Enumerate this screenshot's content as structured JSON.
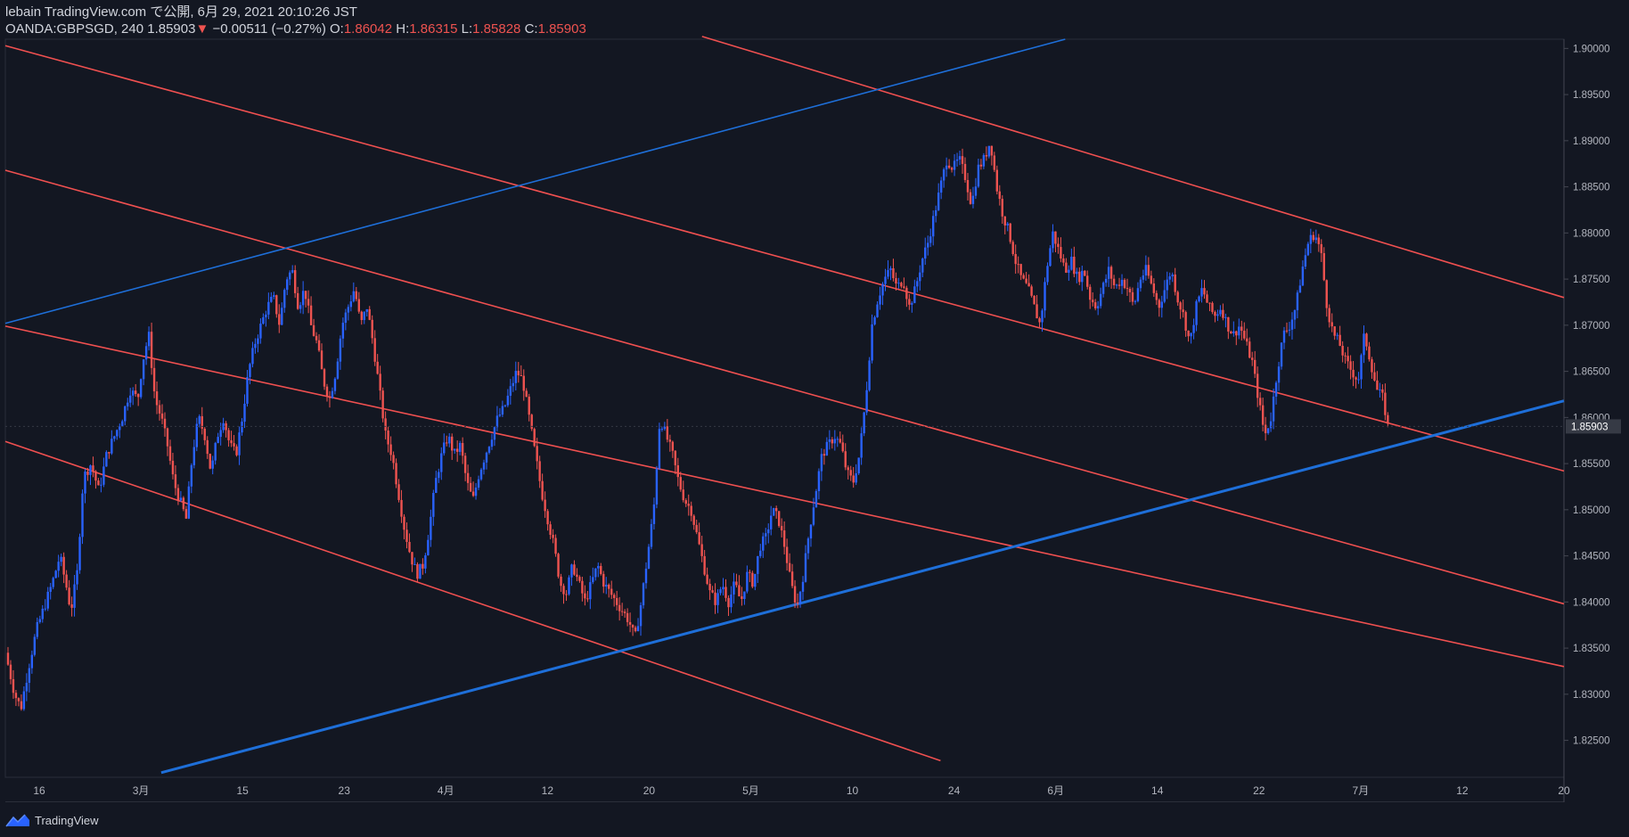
{
  "header": {
    "line1": "lebain TradingView.com で公開, 6月 29, 2021 20:10:26 JST",
    "symbol": "OANDA:GBPSGD, 240",
    "last": "1.85903",
    "arrow": "▼",
    "change": "−0.00511 (−0.27%)",
    "o_label": "O:",
    "o_val": "1.86042",
    "h_label": "H:",
    "h_val": "1.86315",
    "l_label": "L:",
    "l_val": "1.85828",
    "c_label": "C:",
    "c_val": "1.85903"
  },
  "brand": {
    "label": "TradingView"
  },
  "colors": {
    "bg": "#131722",
    "up": "#2962ff",
    "down": "#ef5350",
    "red_line": "#f05050",
    "blue_line": "#1e6fd9",
    "axis_text": "#b2b5be",
    "price_tag": "#363a45"
  },
  "chart_data": {
    "type": "candlestick",
    "instrument": "OANDA:GBPSGD",
    "interval": "240",
    "price_axis": {
      "ylim": [
        1.821,
        1.901
      ],
      "ticks": [
        "1.90000",
        "1.89500",
        "1.89000",
        "1.88500",
        "1.88000",
        "1.87500",
        "1.87000",
        "1.86500",
        "1.86000",
        "1.85500",
        "1.85000",
        "1.84500",
        "1.84000",
        "1.83500",
        "1.83000",
        "1.82500"
      ],
      "last_price_label": "1.85903"
    },
    "time_axis": {
      "ticks": [
        "16",
        "3月",
        "15",
        "23",
        "4月",
        "12",
        "20",
        "5月",
        "10",
        "24",
        "6月",
        "14",
        "22",
        "7月",
        "12",
        "20"
      ]
    },
    "close_path": [
      [
        0.0,
        1.8345
      ],
      [
        0.006,
        1.83
      ],
      [
        0.01,
        1.8285
      ],
      [
        0.015,
        1.833
      ],
      [
        0.02,
        1.837
      ],
      [
        0.025,
        1.8395
      ],
      [
        0.03,
        1.842
      ],
      [
        0.035,
        1.845
      ],
      [
        0.04,
        1.841
      ],
      [
        0.042,
        1.839
      ],
      [
        0.046,
        1.843
      ],
      [
        0.05,
        1.8535
      ],
      [
        0.055,
        1.855
      ],
      [
        0.06,
        1.852
      ],
      [
        0.065,
        1.856
      ],
      [
        0.07,
        1.858
      ],
      [
        0.075,
        1.86
      ],
      [
        0.08,
        1.863
      ],
      [
        0.085,
        1.862
      ],
      [
        0.088,
        1.866
      ],
      [
        0.092,
        1.869
      ],
      [
        0.096,
        1.862
      ],
      [
        0.1,
        1.86
      ],
      [
        0.104,
        1.857
      ],
      [
        0.108,
        1.853
      ],
      [
        0.112,
        1.851
      ],
      [
        0.116,
        1.849
      ],
      [
        0.12,
        1.856
      ],
      [
        0.124,
        1.86
      ],
      [
        0.128,
        1.858
      ],
      [
        0.132,
        1.854
      ],
      [
        0.136,
        1.858
      ],
      [
        0.14,
        1.86
      ],
      [
        0.144,
        1.857
      ],
      [
        0.148,
        1.856
      ],
      [
        0.152,
        1.86
      ],
      [
        0.156,
        1.865
      ],
      [
        0.16,
        1.868
      ],
      [
        0.164,
        1.87
      ],
      [
        0.168,
        1.872
      ],
      [
        0.172,
        1.873
      ],
      [
        0.176,
        1.87
      ],
      [
        0.18,
        1.875
      ],
      [
        0.184,
        1.876
      ],
      [
        0.188,
        1.872
      ],
      [
        0.192,
        1.874
      ],
      [
        0.196,
        1.87
      ],
      [
        0.2,
        1.868
      ],
      [
        0.204,
        1.864
      ],
      [
        0.208,
        1.862
      ],
      [
        0.212,
        1.865
      ],
      [
        0.216,
        1.87
      ],
      [
        0.22,
        1.872
      ],
      [
        0.224,
        1.874
      ],
      [
        0.228,
        1.87
      ],
      [
        0.232,
        1.872
      ],
      [
        0.236,
        1.868
      ],
      [
        0.24,
        1.863
      ],
      [
        0.244,
        1.858
      ],
      [
        0.248,
        1.856
      ],
      [
        0.252,
        1.852
      ],
      [
        0.256,
        1.848
      ],
      [
        0.26,
        1.845
      ],
      [
        0.264,
        1.843
      ],
      [
        0.268,
        1.844
      ],
      [
        0.272,
        1.848
      ],
      [
        0.276,
        1.853
      ],
      [
        0.28,
        1.856
      ],
      [
        0.284,
        1.858
      ],
      [
        0.288,
        1.856
      ],
      [
        0.292,
        1.857
      ],
      [
        0.296,
        1.853
      ],
      [
        0.3,
        1.851
      ],
      [
        0.304,
        1.854
      ],
      [
        0.308,
        1.856
      ],
      [
        0.312,
        1.858
      ],
      [
        0.316,
        1.86
      ],
      [
        0.32,
        1.861
      ],
      [
        0.324,
        1.863
      ],
      [
        0.328,
        1.865
      ],
      [
        0.332,
        1.864
      ],
      [
        0.336,
        1.86
      ],
      [
        0.34,
        1.856
      ],
      [
        0.344,
        1.852
      ],
      [
        0.348,
        1.849
      ],
      [
        0.352,
        1.846
      ],
      [
        0.356,
        1.842
      ],
      [
        0.36,
        1.841
      ],
      [
        0.364,
        1.844
      ],
      [
        0.368,
        1.842
      ],
      [
        0.372,
        1.84
      ],
      [
        0.376,
        1.842
      ],
      [
        0.38,
        1.844
      ],
      [
        0.384,
        1.842
      ],
      [
        0.388,
        1.841
      ],
      [
        0.392,
        1.84
      ],
      [
        0.396,
        1.839
      ],
      [
        0.4,
        1.838
      ],
      [
        0.404,
        1.836
      ],
      [
        0.408,
        1.84
      ],
      [
        0.412,
        1.845
      ],
      [
        0.416,
        1.85
      ],
      [
        0.42,
        1.86
      ],
      [
        0.424,
        1.858
      ],
      [
        0.428,
        1.856
      ],
      [
        0.432,
        1.853
      ],
      [
        0.436,
        1.851
      ],
      [
        0.44,
        1.85
      ],
      [
        0.444,
        1.847
      ],
      [
        0.448,
        1.844
      ],
      [
        0.452,
        1.841
      ],
      [
        0.456,
        1.84
      ],
      [
        0.46,
        1.842
      ],
      [
        0.464,
        1.84
      ],
      [
        0.468,
        1.842
      ],
      [
        0.472,
        1.84
      ],
      [
        0.476,
        1.843
      ],
      [
        0.48,
        1.842
      ],
      [
        0.484,
        1.846
      ],
      [
        0.488,
        1.847
      ],
      [
        0.492,
        1.85
      ],
      [
        0.496,
        1.849
      ],
      [
        0.5,
        1.846
      ],
      [
        0.504,
        1.842
      ],
      [
        0.508,
        1.8395
      ],
      [
        0.512,
        1.843
      ],
      [
        0.516,
        1.848
      ],
      [
        0.52,
        1.852
      ],
      [
        0.524,
        1.856
      ],
      [
        0.528,
        1.857
      ],
      [
        0.532,
        1.858
      ],
      [
        0.536,
        1.857
      ],
      [
        0.54,
        1.854
      ],
      [
        0.544,
        1.853
      ],
      [
        0.548,
        1.856
      ],
      [
        0.552,
        1.862
      ],
      [
        0.556,
        1.87
      ],
      [
        0.56,
        1.873
      ],
      [
        0.564,
        1.875
      ],
      [
        0.568,
        1.876
      ],
      [
        0.572,
        1.874
      ],
      [
        0.576,
        1.875
      ],
      [
        0.58,
        1.872
      ],
      [
        0.584,
        1.874
      ],
      [
        0.588,
        1.877
      ],
      [
        0.592,
        1.879
      ],
      [
        0.596,
        1.882
      ],
      [
        0.6,
        1.885
      ],
      [
        0.604,
        1.888
      ],
      [
        0.608,
        1.887
      ],
      [
        0.612,
        1.888
      ],
      [
        0.616,
        1.886
      ],
      [
        0.62,
        1.883
      ],
      [
        0.624,
        1.887
      ],
      [
        0.628,
        1.888
      ],
      [
        0.632,
        1.89
      ],
      [
        0.636,
        1.885
      ],
      [
        0.64,
        1.882
      ],
      [
        0.644,
        1.88
      ],
      [
        0.648,
        1.877
      ],
      [
        0.652,
        1.875
      ],
      [
        0.656,
        1.874
      ],
      [
        0.66,
        1.872
      ],
      [
        0.664,
        1.87
      ],
      [
        0.668,
        1.876
      ],
      [
        0.672,
        1.88
      ],
      [
        0.676,
        1.878
      ],
      [
        0.68,
        1.876
      ],
      [
        0.684,
        1.877
      ],
      [
        0.688,
        1.875
      ],
      [
        0.692,
        1.876
      ],
      [
        0.696,
        1.873
      ],
      [
        0.7,
        1.872
      ],
      [
        0.704,
        1.874
      ],
      [
        0.708,
        1.876
      ],
      [
        0.712,
        1.874
      ],
      [
        0.716,
        1.875
      ],
      [
        0.72,
        1.874
      ],
      [
        0.724,
        1.872
      ],
      [
        0.728,
        1.875
      ],
      [
        0.732,
        1.876
      ],
      [
        0.736,
        1.874
      ],
      [
        0.74,
        1.872
      ],
      [
        0.744,
        1.874
      ],
      [
        0.748,
        1.876
      ],
      [
        0.752,
        1.873
      ],
      [
        0.756,
        1.871
      ],
      [
        0.76,
        1.868
      ],
      [
        0.764,
        1.872
      ],
      [
        0.768,
        1.874
      ],
      [
        0.772,
        1.872
      ],
      [
        0.776,
        1.871
      ],
      [
        0.78,
        1.872
      ],
      [
        0.784,
        1.87
      ],
      [
        0.788,
        1.869
      ],
      [
        0.792,
        1.87
      ],
      [
        0.796,
        1.868
      ],
      [
        0.8,
        1.866
      ],
      [
        0.804,
        1.862
      ],
      [
        0.808,
        1.858
      ],
      [
        0.812,
        1.86
      ],
      [
        0.816,
        1.865
      ],
      [
        0.82,
        1.869
      ],
      [
        0.824,
        1.87
      ],
      [
        0.828,
        1.872
      ],
      [
        0.832,
        1.876
      ],
      [
        0.836,
        1.879
      ],
      [
        0.84,
        1.88
      ],
      [
        0.844,
        1.878
      ],
      [
        0.848,
        1.872
      ],
      [
        0.852,
        1.869
      ],
      [
        0.856,
        1.868
      ],
      [
        0.86,
        1.866
      ],
      [
        0.864,
        1.865
      ],
      [
        0.868,
        1.864
      ],
      [
        0.872,
        1.869
      ],
      [
        0.876,
        1.866
      ],
      [
        0.88,
        1.863
      ],
      [
        0.884,
        1.862
      ],
      [
        0.887,
        1.859
      ]
    ],
    "trendlines": [
      {
        "color": "red",
        "x1": 0.0,
        "y1": 1.9003,
        "x2": 1.0,
        "y2": 1.8542
      },
      {
        "color": "red",
        "x1": 0.0,
        "y1": 1.8868,
        "x2": 1.0,
        "y2": 1.8398
      },
      {
        "color": "red",
        "x1": 0.0,
        "y1": 1.8574,
        "x2": 0.6,
        "y2": 1.8228
      },
      {
        "color": "red",
        "x1": 0.447,
        "y1": 1.9013,
        "x2": 1.0,
        "y2": 1.873
      },
      {
        "color": "red",
        "x1": 0.0,
        "y1": 1.8699,
        "x2": 1.0,
        "y2": 1.833
      },
      {
        "color": "blue",
        "x1": 0.0,
        "y1": 1.8702,
        "x2": 0.68,
        "y2": 1.901
      },
      {
        "color": "blue",
        "x1": 0.1,
        "y1": 1.8215,
        "x2": 1.0,
        "y2": 1.8618
      }
    ]
  }
}
